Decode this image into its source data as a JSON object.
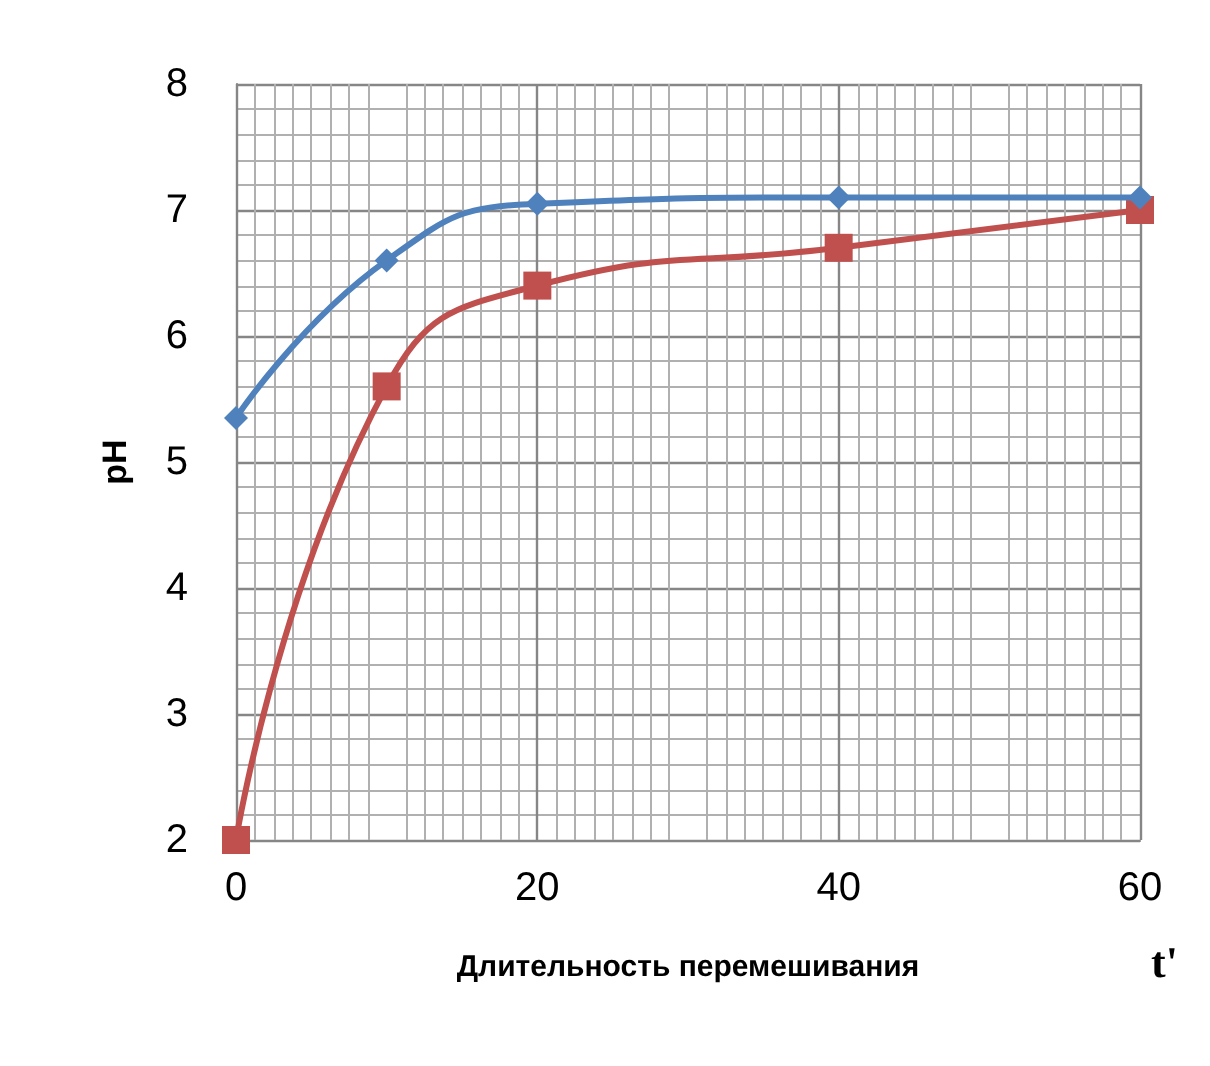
{
  "chart_data": {
    "type": "line",
    "xlabel": "Длительность перемешивания",
    "ylabel": "pH",
    "annotations": [
      "t'"
    ],
    "x": [
      0,
      10,
      20,
      40,
      60
    ],
    "series": [
      {
        "color": "#4f81bd",
        "marker": "diamond",
        "values": [
          5.35,
          6.6,
          7.05,
          7.1,
          7.1
        ]
      },
      {
        "color": "#c0504d",
        "marker": "square",
        "values": [
          2,
          5.6,
          6.4,
          6.7,
          7.0
        ]
      }
    ],
    "xlim": [
      0,
      60
    ],
    "xticks": [
      0,
      20,
      40,
      60
    ],
    "ylim": [
      2,
      8
    ],
    "yticks": [
      2,
      3,
      4,
      5,
      6,
      7,
      8
    ],
    "grid": true,
    "line_style": "solid"
  }
}
